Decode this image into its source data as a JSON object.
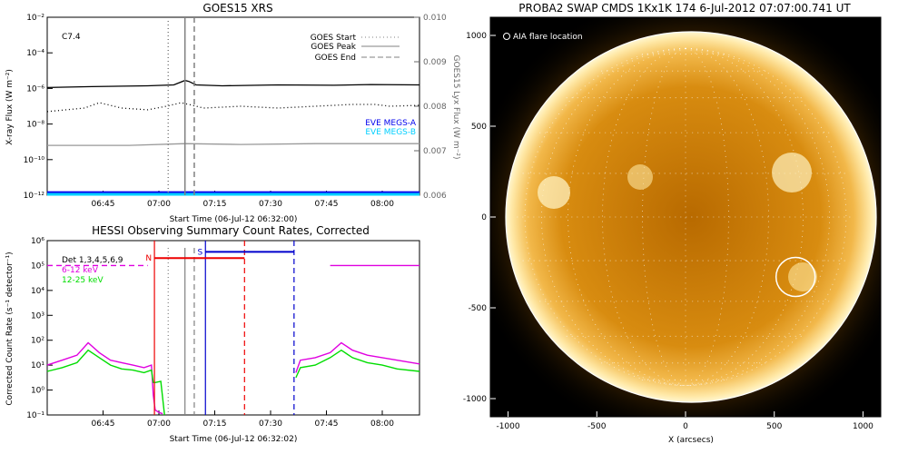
{
  "chart_data": [
    {
      "type": "line",
      "title": "GOES15 XRS",
      "xlabel": "Start Time (06-Jul-12 06:32:00)",
      "ylabel": "X-ray Flux (W m⁻²)",
      "y2label": "GOES15 Lyx Flux (W m⁻²)",
      "xticks": [
        "06:45",
        "07:00",
        "07:15",
        "07:30",
        "07:45",
        "08:00"
      ],
      "yticks_left": [
        "10⁻¹²",
        "10⁻¹⁰",
        "10⁻⁸",
        "10⁻⁶",
        "10⁻⁴",
        "10⁻²"
      ],
      "yticks_right": [
        "0.006",
        "0.007",
        "0.008",
        "0.009",
        "0.010"
      ],
      "x_range_min": [
        -2,
        98
      ],
      "ylim_log": [
        -12,
        -2
      ],
      "y2lim": [
        0.006,
        0.01
      ],
      "flare_class": "C7.4",
      "markers": {
        "goes_start_min": 30.5,
        "goes_peak_min": 35,
        "goes_end_min": 37.5
      },
      "legend": [
        {
          "label": "GOES Start",
          "style": "dotted",
          "color": "#808080"
        },
        {
          "label": "GOES Peak",
          "style": "solid",
          "color": "#808080"
        },
        {
          "label": "GOES End",
          "style": "dashed",
          "color": "#808080"
        }
      ],
      "legend2": [
        {
          "label": "EVE MEGS-A",
          "color": "#0000ee"
        },
        {
          "label": "EVE MEGS-B",
          "color": "#00cfff"
        }
      ],
      "series": [
        {
          "style": "solid",
          "color": "#000000",
          "x": [
            -2,
            10,
            25,
            32,
            35,
            36,
            38,
            45,
            60,
            75,
            85,
            98
          ],
          "y": [
            -5.95,
            -5.9,
            -5.85,
            -5.8,
            -5.55,
            -5.6,
            -5.8,
            -5.85,
            -5.8,
            -5.82,
            -5.78,
            -5.8
          ]
        },
        {
          "style": "dotted",
          "color": "#000000",
          "x": [
            -2,
            8,
            12,
            18,
            25,
            30,
            34,
            36,
            40,
            50,
            60,
            70,
            80,
            86,
            90,
            98
          ],
          "y": [
            -7.3,
            -7.1,
            -6.8,
            -7.1,
            -7.2,
            -7.0,
            -6.8,
            -6.9,
            -7.1,
            -7.0,
            -7.1,
            -7.0,
            -6.9,
            -6.9,
            -7.0,
            -6.95
          ]
        },
        {
          "style": "solid",
          "color": "#999999",
          "x": [
            -2,
            20,
            35,
            50,
            70,
            98
          ],
          "y": [
            -9.2,
            -9.2,
            -9.1,
            -9.15,
            -9.1,
            -9.1
          ]
        },
        {
          "style": "solid",
          "color": "#0000ee",
          "x": [
            -2,
            98
          ],
          "y": [
            -11.85,
            -11.85
          ]
        },
        {
          "style": "solid",
          "color": "#00cfff",
          "x": [
            -2,
            98
          ],
          "y": [
            -11.95,
            -11.95
          ]
        }
      ]
    },
    {
      "type": "line",
      "title": "HESSI Observing Summary Count Rates, Corrected",
      "xlabel": "Start Time (06-Jul-12 06:32:02)",
      "ylabel": "Corrected Count Rate (s⁻¹ detector⁻¹)",
      "xticks": [
        "06:45",
        "07:00",
        "07:15",
        "07:30",
        "07:45",
        "08:00"
      ],
      "yticks": [
        "10⁻¹",
        "10⁰",
        "10¹",
        "10²",
        "10³",
        "10⁴",
        "10⁵",
        "10⁶"
      ],
      "x_range_min": [
        -2,
        98
      ],
      "ylim_log": [
        -1,
        6
      ],
      "legend": [
        {
          "label": "Det 1,3,4,5,6,9",
          "color": "#000000"
        },
        {
          "label": "6-12 keV",
          "color": "#e000e0"
        },
        {
          "label": "12-25 keV",
          "color": "#00dd00"
        }
      ],
      "flags": [
        {
          "label": "N",
          "color": "#ee0000",
          "x0": 26.8,
          "x1": 51,
          "y": 5.3
        },
        {
          "label": "S",
          "color": "#0000cc",
          "x0": 40.5,
          "x1": 64.3,
          "y": 5.55
        }
      ],
      "vlines": [
        {
          "x": 26.8,
          "color": "#ee0000",
          "style": "solid"
        },
        {
          "x": 51,
          "color": "#ee0000",
          "style": "dashed"
        },
        {
          "x": 40.5,
          "color": "#0000cc",
          "style": "solid"
        },
        {
          "x": 64.3,
          "color": "#0000cc",
          "style": "dashed"
        },
        {
          "x": 30.5,
          "color": "#808080",
          "style": "dotted"
        },
        {
          "x": 35,
          "color": "#808080",
          "style": "solid"
        },
        {
          "x": 37.5,
          "color": "#808080",
          "style": "dashed"
        }
      ],
      "series": [
        {
          "name": "6-12 keV",
          "color": "#e000e0",
          "x": [
            -2,
            2,
            6,
            9,
            12,
            15,
            18,
            21,
            24,
            26,
            26.5,
            27,
            28,
            29
          ],
          "y": [
            1.0,
            1.2,
            1.4,
            1.9,
            1.5,
            1.2,
            1.1,
            1.0,
            0.9,
            1.0,
            -0.2,
            -0.8,
            -0.9,
            -0.95
          ]
        },
        {
          "name": "12-25 keV",
          "color": "#00dd00",
          "x": [
            -2,
            2,
            6,
            9,
            12,
            15,
            18,
            21,
            24,
            26,
            26.5,
            27,
            28.5,
            29.5
          ],
          "y": [
            0.75,
            0.9,
            1.1,
            1.6,
            1.3,
            1.0,
            0.85,
            0.8,
            0.7,
            0.8,
            0.3,
            0.3,
            0.35,
            -1.0
          ]
        },
        {
          "name": "6-12 keV",
          "color": "#e000e0",
          "x": [
            64.8,
            66,
            70,
            74,
            77,
            80,
            84,
            88,
            92,
            98
          ],
          "y": [
            0.7,
            1.2,
            1.3,
            1.5,
            1.9,
            1.6,
            1.4,
            1.3,
            1.2,
            1.05
          ]
        },
        {
          "name": "12-25 keV",
          "color": "#00dd00",
          "x": [
            64.8,
            66,
            70,
            74,
            77,
            80,
            84,
            88,
            92,
            98
          ],
          "y": [
            0.5,
            0.9,
            1.0,
            1.3,
            1.6,
            1.3,
            1.1,
            1.0,
            0.85,
            0.75
          ]
        },
        {
          "name": "6-12 keV",
          "color": "#e000e0",
          "style": "dashed",
          "x": [
            -2,
            25
          ],
          "y": [
            5.0,
            5.0
          ]
        },
        {
          "name": "6-12 keV",
          "color": "#e000e0",
          "x": [
            74,
            98
          ],
          "y": [
            5.0,
            5.0
          ]
        }
      ]
    },
    {
      "type": "scatter",
      "title": "PROBA2 SWAP CMDS 1Kx1K 174   6-Jul-2012 07:07:00.741 UT",
      "xlabel": "X (arcsecs)",
      "xticks": [
        -1000,
        -500,
        0,
        500,
        1000
      ],
      "yticks": [
        -1000,
        -500,
        0,
        500,
        1000
      ],
      "xlim": [
        -1100,
        1100
      ],
      "ylim": [
        -1100,
        1100
      ],
      "annotation": "AIA flare location",
      "flare_location": {
        "x": 620,
        "y": -330,
        "r": 110
      },
      "solar_radius_arcsec": 950
    }
  ]
}
